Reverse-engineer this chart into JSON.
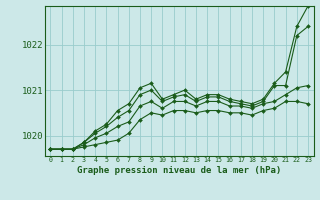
{
  "title": "Graphe pression niveau de la mer (hPa)",
  "background_color": "#cce8e8",
  "line_color": "#1a5c1a",
  "grid_color": "#99cccc",
  "x_ticks": [
    0,
    1,
    2,
    3,
    4,
    5,
    6,
    7,
    8,
    9,
    10,
    11,
    12,
    13,
    14,
    15,
    16,
    17,
    18,
    19,
    20,
    21,
    22,
    23
  ],
  "ylim": [
    1019.55,
    1022.85
  ],
  "xlim": [
    -0.5,
    23.5
  ],
  "yticks": [
    1020,
    1021,
    1022
  ],
  "series": [
    [
      1019.7,
      1019.7,
      1019.7,
      1019.75,
      1019.8,
      1019.85,
      1019.9,
      1020.05,
      1020.35,
      1020.5,
      1020.45,
      1020.55,
      1020.55,
      1020.5,
      1020.55,
      1020.55,
      1020.5,
      1020.5,
      1020.45,
      1020.55,
      1020.6,
      1020.75,
      1020.75,
      1020.7
    ],
    [
      1019.7,
      1019.7,
      1019.7,
      1019.8,
      1019.95,
      1020.05,
      1020.2,
      1020.3,
      1020.65,
      1020.75,
      1020.6,
      1020.75,
      1020.75,
      1020.65,
      1020.75,
      1020.75,
      1020.65,
      1020.65,
      1020.6,
      1020.7,
      1020.75,
      1020.9,
      1021.05,
      1021.1
    ],
    [
      1019.7,
      1019.7,
      1019.7,
      1019.85,
      1020.05,
      1020.2,
      1020.4,
      1020.55,
      1020.9,
      1021.0,
      1020.75,
      1020.85,
      1020.9,
      1020.75,
      1020.85,
      1020.85,
      1020.75,
      1020.7,
      1020.65,
      1020.75,
      1021.1,
      1021.1,
      1022.2,
      1022.4
    ],
    [
      1019.7,
      1019.7,
      1019.7,
      1019.85,
      1020.1,
      1020.25,
      1020.55,
      1020.7,
      1021.05,
      1021.15,
      1020.8,
      1020.9,
      1021.0,
      1020.8,
      1020.9,
      1020.9,
      1020.8,
      1020.75,
      1020.7,
      1020.8,
      1021.15,
      1021.4,
      1022.4,
      1022.85
    ]
  ]
}
